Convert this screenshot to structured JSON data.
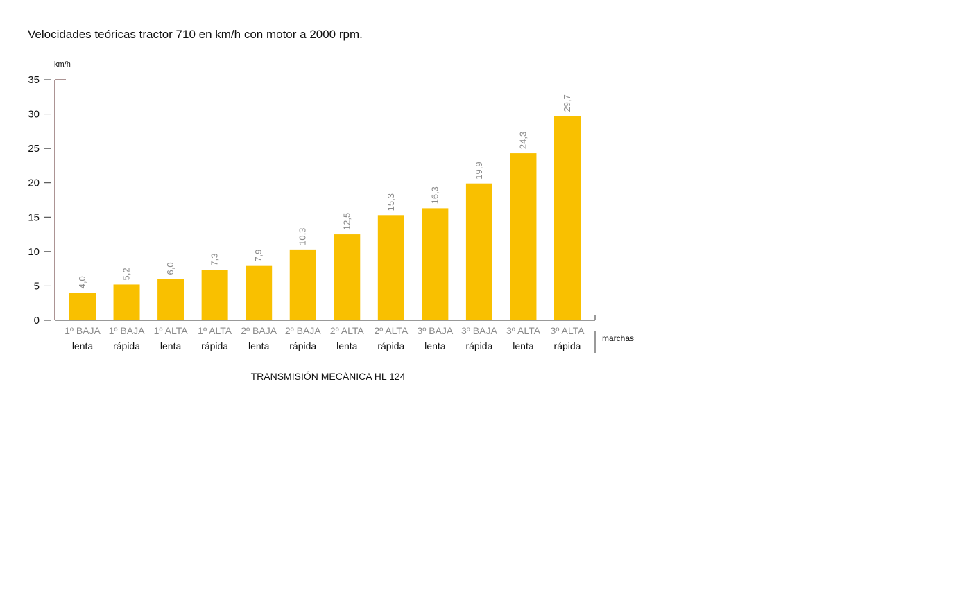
{
  "chart_data": {
    "type": "bar",
    "title": "Velocidades teóricas tractor 710 en km/h con motor a 2000 rpm.",
    "ylabel": "km/h",
    "xlabel": "TRANSMISIÓN MECÁNICA HL 124",
    "xaxis_side_label": "marchas",
    "ylim": [
      0,
      35
    ],
    "yticks": [
      0,
      5,
      10,
      15,
      20,
      25,
      30,
      35
    ],
    "grid": false,
    "bar_color": "#f9c000",
    "axis_color": "#5a2a2a",
    "categories": [
      {
        "top": "1º BAJA",
        "bottom": "lenta"
      },
      {
        "top": "1º BAJA",
        "bottom": "rápida"
      },
      {
        "top": "1º ALTA",
        "bottom": "lenta"
      },
      {
        "top": "1º ALTA",
        "bottom": "rápida"
      },
      {
        "top": "2º BAJA",
        "bottom": "lenta"
      },
      {
        "top": "2º BAJA",
        "bottom": "rápida"
      },
      {
        "top": "2º ALTA",
        "bottom": "lenta"
      },
      {
        "top": "2º ALTA",
        "bottom": "rápida"
      },
      {
        "top": "3º BAJA",
        "bottom": "lenta"
      },
      {
        "top": "3º BAJA",
        "bottom": "rápida"
      },
      {
        "top": "3º ALTA",
        "bottom": "lenta"
      },
      {
        "top": "3º ALTA",
        "bottom": "rápida"
      }
    ],
    "values": [
      4.0,
      5.2,
      6.0,
      7.3,
      7.9,
      10.3,
      12.5,
      15.3,
      16.3,
      19.9,
      24.3,
      29.7
    ],
    "value_labels": [
      "4,0",
      "5,2",
      "6,0",
      "7,3",
      "7,9",
      "10,3",
      "12,5",
      "15,3",
      "16,3",
      "19,9",
      "24,3",
      "29,7"
    ]
  }
}
